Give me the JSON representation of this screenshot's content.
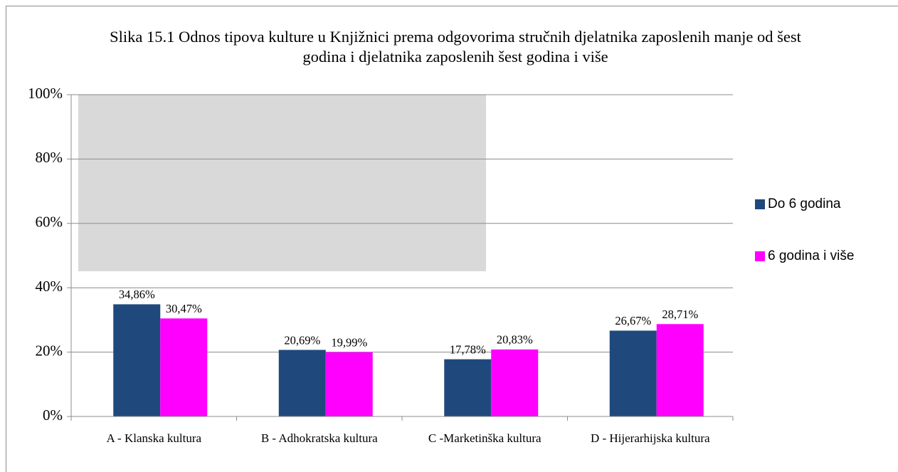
{
  "chart_data": {
    "type": "bar",
    "title": "Slika 15.1 Odnos tipova kulture u Knjižnici prema odgovorima stručnih djelatnika zaposlenih manje od šest godina i djelatnika zaposlenih šest godina i više",
    "categories": [
      "A - Klanska kultura",
      "B - Adhokratska kultura",
      "C -Marketinška kultura",
      "D - Hijerarhijska kultura"
    ],
    "series": [
      {
        "name": "Do 6 godina",
        "color": "#1f497d",
        "values": [
          34.86,
          20.69,
          17.78,
          26.67
        ],
        "value_labels": [
          "34,86%",
          "20,69%",
          "17,78%",
          "26,67%"
        ]
      },
      {
        "name": "6 godina i više",
        "color": "#ff00ff",
        "values": [
          30.47,
          19.99,
          20.83,
          28.71
        ],
        "value_labels": [
          "30,47%",
          "19,99%",
          "20,83%",
          "28,71%"
        ]
      }
    ],
    "ylim": [
      0,
      100
    ],
    "yticks": [
      {
        "value": 0,
        "label": "0%"
      },
      {
        "value": 20,
        "label": "20%"
      },
      {
        "value": 40,
        "label": "40%"
      },
      {
        "value": 60,
        "label": "60%"
      },
      {
        "value": 80,
        "label": "80%"
      },
      {
        "value": 100,
        "label": "100%"
      }
    ],
    "grid": true,
    "legend": "right"
  }
}
